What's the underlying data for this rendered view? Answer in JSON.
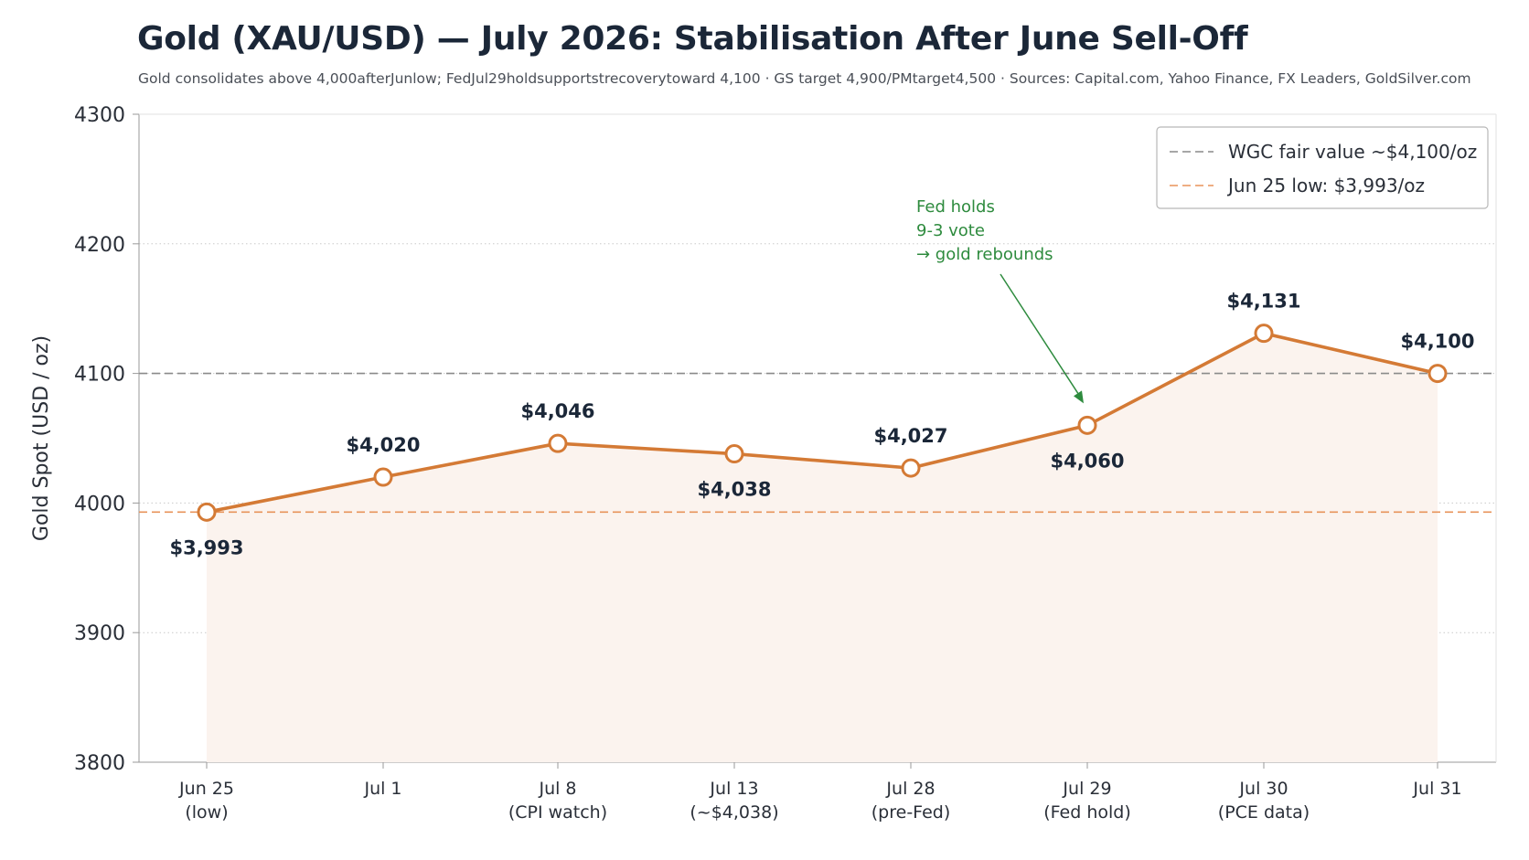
{
  "chart_data": {
    "type": "line",
    "title": "Gold (XAU/USD) — July 2026: Stabilisation After June Sell-Off",
    "subtitle": "Gold consolidates above 4,000afterJunlow; FedJul29holdsupportstrecoverytoward 4,100  ·  GS target 4,900/PMtarget4,500  ·  Sources: Capital.com, Yahoo Finance, FX Leaders, GoldSilver.com",
    "xlabel": "",
    "ylabel": "Gold Spot (USD / oz)",
    "ylim": [
      3800,
      4300
    ],
    "yticks": [
      3800,
      3900,
      4000,
      4100,
      4200,
      4300
    ],
    "grid": "horizontal dotted",
    "legend_position": "top-right",
    "categories": [
      [
        "Jun 25",
        "(low)"
      ],
      [
        "Jul 1",
        ""
      ],
      [
        "Jul 8",
        "(CPI watch)"
      ],
      [
        "Jul 13",
        "(~$4,038)"
      ],
      [
        "Jul 28",
        "(pre-Fed)"
      ],
      [
        "Jul 29",
        "(Fed hold)"
      ],
      [
        "Jul 30",
        "(PCE data)"
      ],
      [
        "Jul 31",
        ""
      ]
    ],
    "series": [
      {
        "values": [
          3993,
          4020,
          4046,
          4038,
          4027,
          4060,
          4131,
          4100
        ],
        "labels": [
          "$3,993",
          "$4,020",
          "$4,046",
          "$4,038",
          "$4,027",
          "$4,060",
          "$4,131",
          "$4,100"
        ],
        "label_side": [
          "below",
          "above",
          "above",
          "below",
          "above",
          "below",
          "above",
          "above"
        ],
        "color": "#d47a35",
        "fill": "#fbf3ee"
      }
    ],
    "reference_lines": [
      {
        "name": "WGC fair value ~$4,100/oz",
        "value": 4100,
        "color": "#8a8a8a",
        "style": "dashed"
      },
      {
        "name": "Jun 25 low: $3,993/oz",
        "value": 3993,
        "color": "#e8935a",
        "style": "dashed"
      }
    ],
    "annotation": {
      "lines": [
        "Fed holds",
        "9-3 vote",
        "→ gold rebounds"
      ],
      "target_index": 5,
      "color": "#2e8b3e"
    }
  }
}
